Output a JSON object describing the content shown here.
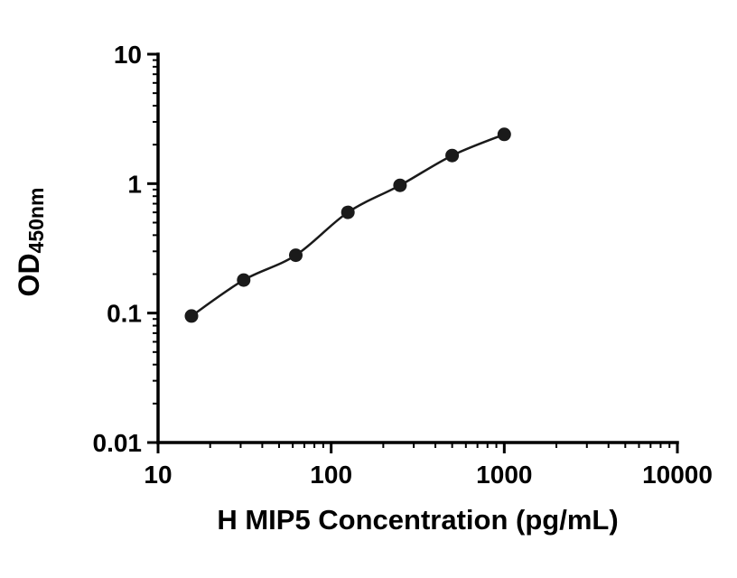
{
  "chart_data": {
    "type": "scatter",
    "title": "",
    "xlabel": "H MIP5 Concentration (pg/mL)",
    "ylabel": "OD450nm",
    "ylabel_base": "OD",
    "ylabel_sub": "450nm",
    "xscale": "log",
    "yscale": "log",
    "xlim": [
      10,
      10000
    ],
    "ylim": [
      0.01,
      10
    ],
    "x_ticks": [
      10,
      100,
      1000,
      10000
    ],
    "x_tick_labels": [
      "10",
      "100",
      "1000",
      "10000"
    ],
    "y_ticks": [
      0.01,
      0.1,
      1,
      10
    ],
    "y_tick_labels": [
      "0.01",
      "0.1",
      "1",
      "10"
    ],
    "x": [
      15.6,
      31.25,
      62.5,
      125,
      250,
      500,
      1000
    ],
    "y": [
      0.095,
      0.18,
      0.28,
      0.6,
      0.97,
      1.65,
      2.4
    ],
    "grid": false,
    "legend": "none",
    "axis_color": "#000000",
    "line_color": "#1a1a1a",
    "marker_color": "#1a1a1a",
    "marker_radius": 7.5
  }
}
